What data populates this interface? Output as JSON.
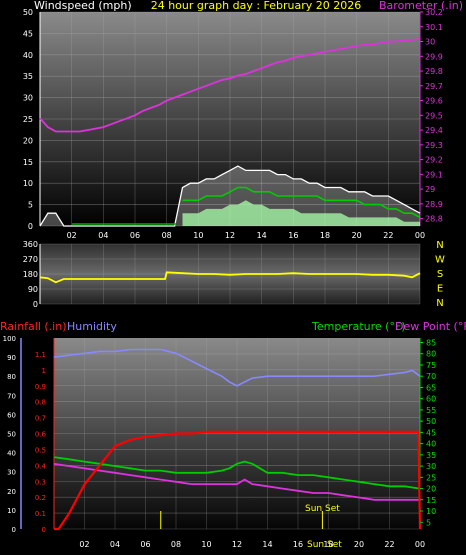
{
  "top": {
    "left_label": "Windspeed (mph)",
    "center_label": "24 hour graph day : February 20 2026",
    "right_label": "Barometer (.in)",
    "left_ticks": [
      "0",
      "5",
      "10",
      "15",
      "20",
      "25",
      "30",
      "35",
      "40",
      "45",
      "50"
    ],
    "right_ticks": [
      "28.8",
      "28.9",
      "29",
      "29.1",
      "29.2",
      "29.3",
      "29.4",
      "29.5",
      "29.6",
      "29.7",
      "29.8",
      "29.9",
      "30",
      "30.1",
      "30.2"
    ],
    "x_ticks": [
      "02",
      "04",
      "06",
      "08",
      "10",
      "12",
      "14",
      "16",
      "18",
      "20",
      "22",
      "00"
    ]
  },
  "wind_dir": {
    "left_ticks": [
      "0",
      "90",
      "180",
      "270",
      "360"
    ],
    "compass": [
      "N",
      "W",
      "S",
      "E",
      "N"
    ]
  },
  "bottom": {
    "rain_label": "Rainfall (.in)",
    "humidity_label": "Humidity",
    "temp_label": "Temperature (°F)",
    "dew_label": "Dew Point (°F)",
    "humidity_ticks": [
      "0",
      "10",
      "20",
      "30",
      "40",
      "50",
      "60",
      "70",
      "80",
      "90",
      "100"
    ],
    "rain_ticks": [
      "0",
      "0.1",
      "0.2",
      "0.3",
      "0.4",
      "0.5",
      "0.6",
      "0.7",
      "0.8",
      "0.9",
      "1",
      "1.1"
    ],
    "temp_ticks": [
      "5",
      "10",
      "15",
      "20",
      "25",
      "30",
      "35",
      "40",
      "45",
      "50",
      "55",
      "60",
      "65",
      "70",
      "75",
      "80",
      "85"
    ],
    "x_ticks": [
      "02",
      "04",
      "06",
      "08",
      "10",
      "12",
      "14",
      "16",
      "18",
      "20",
      "22",
      "00"
    ],
    "sunset_top": "Sun Set",
    "sunset_bottom": "Sun Set"
  },
  "chart_data": [
    {
      "type": "line",
      "title": "24 hour graph day : February 20 2026",
      "x_unit": "hour",
      "xlim": [
        0,
        24
      ],
      "ylabel": "Windspeed (mph)",
      "ylim": [
        0,
        50
      ],
      "y2label": "Barometer (.in)",
      "y2lim": [
        28.75,
        30.2
      ],
      "series": [
        {
          "name": "Barometer (.in)",
          "axis": "right",
          "x": [
            0,
            0.5,
            1,
            1.5,
            2,
            2.5,
            3,
            3.5,
            4,
            4.5,
            5,
            5.5,
            6,
            6.5,
            7,
            7.5,
            8,
            8.5,
            9,
            9.5,
            10,
            10.5,
            11,
            11.5,
            12,
            12.5,
            13,
            13.5,
            14,
            14.5,
            15,
            15.5,
            16,
            16.5,
            17,
            17.5,
            18,
            18.5,
            19,
            19.5,
            20,
            20.5,
            21,
            21.5,
            22,
            22.5,
            23,
            23.5,
            24
          ],
          "values": [
            29.48,
            29.42,
            29.39,
            29.39,
            29.39,
            29.39,
            29.4,
            29.41,
            29.42,
            29.44,
            29.46,
            29.48,
            29.5,
            29.53,
            29.55,
            29.57,
            29.6,
            29.62,
            29.64,
            29.66,
            29.68,
            29.7,
            29.72,
            29.74,
            29.75,
            29.77,
            29.78,
            29.8,
            29.82,
            29.84,
            29.86,
            29.87,
            29.89,
            29.9,
            29.91,
            29.92,
            29.93,
            29.94,
            29.95,
            29.96,
            29.97,
            29.98,
            29.98,
            29.99,
            30.0,
            30.0,
            30.01,
            30.01,
            30.02
          ],
          "color": "#dd33dd"
        },
        {
          "name": "Gust",
          "axis": "left",
          "x": [
            0,
            0.5,
            1,
            1.5,
            2,
            3,
            4,
            5,
            6,
            7,
            8,
            8.5,
            9,
            9.5,
            10,
            10.5,
            11,
            11.5,
            12,
            12.5,
            13,
            13.5,
            14,
            14.5,
            15,
            15.5,
            16,
            16.5,
            17,
            17.5,
            18,
            18.5,
            19,
            19.5,
            20,
            20.5,
            21,
            21.5,
            22,
            22.5,
            23,
            23.5,
            24
          ],
          "values": [
            0,
            3,
            3,
            0,
            0,
            0,
            0,
            0,
            0,
            0,
            0,
            0,
            9,
            10,
            10,
            11,
            11,
            12,
            13,
            14,
            13,
            13,
            13,
            13,
            12,
            12,
            11,
            11,
            10,
            10,
            9,
            9,
            9,
            8,
            8,
            8,
            7,
            7,
            7,
            6,
            5,
            4,
            3
          ],
          "color": "#ffffff"
        },
        {
          "name": "Average",
          "axis": "left",
          "x": [
            9,
            9.5,
            10,
            10.5,
            11,
            11.5,
            12,
            12.5,
            13,
            13.5,
            14,
            14.5,
            15,
            15.5,
            16,
            16.5,
            17,
            17.5,
            18,
            18.5,
            19,
            19.5,
            20,
            20.5,
            21,
            21.5,
            22,
            22.5,
            23,
            23.5,
            24
          ],
          "values": [
            6,
            6,
            6,
            7,
            7,
            7,
            8,
            9,
            9,
            8,
            8,
            8,
            7,
            7,
            7,
            7,
            7,
            7,
            6,
            6,
            6,
            6,
            6,
            5,
            5,
            5,
            4,
            4,
            3,
            3,
            2
          ],
          "color": "#00cc00"
        },
        {
          "name": "Speed",
          "axis": "left",
          "x": [
            9,
            9.5,
            10,
            10.5,
            11,
            11.5,
            12,
            12.5,
            13,
            13.5,
            14,
            14.5,
            15,
            15.5,
            16,
            16.5,
            17,
            17.5,
            18,
            18.5,
            19,
            19.5,
            20,
            20.5,
            21,
            21.5,
            22,
            22.5,
            23,
            23.5,
            24
          ],
          "values": [
            3,
            3,
            3,
            4,
            4,
            4,
            5,
            5,
            6,
            5,
            5,
            4,
            4,
            4,
            4,
            3,
            3,
            3,
            3,
            3,
            3,
            2,
            2,
            2,
            2,
            2,
            2,
            2,
            1,
            1,
            1
          ],
          "color": "#aaffaa"
        }
      ]
    },
    {
      "type": "line",
      "x_unit": "hour",
      "xlim": [
        0,
        24
      ],
      "ylim": [
        0,
        360
      ],
      "series": [
        {
          "name": "Wind direction",
          "x": [
            0,
            0.5,
            1,
            1.5,
            2,
            3,
            4,
            5,
            6,
            7,
            7.9,
            8,
            9,
            10,
            11,
            12,
            13,
            14,
            15,
            16,
            17,
            18,
            19,
            20,
            21,
            22,
            23,
            23.5,
            24
          ],
          "values": [
            160,
            155,
            130,
            150,
            150,
            150,
            150,
            150,
            150,
            150,
            150,
            190,
            185,
            180,
            180,
            175,
            180,
            180,
            180,
            185,
            180,
            180,
            180,
            180,
            175,
            175,
            170,
            160,
            185
          ],
          "color": "#ffff00"
        }
      ]
    },
    {
      "type": "line",
      "x_unit": "hour",
      "xlim": [
        0,
        24
      ],
      "y_axes": {
        "humidity": [
          0,
          100
        ],
        "rainfall": [
          0,
          1.2
        ],
        "temperature": [
          2,
          87
        ]
      },
      "series": [
        {
          "name": "Humidity",
          "axis": "humidity",
          "x": [
            0,
            1,
            2,
            3,
            4,
            5,
            6,
            7,
            8,
            9,
            10,
            11,
            11.5,
            12,
            12.5,
            13,
            14,
            15,
            16,
            17,
            18,
            19,
            20,
            21,
            22,
            23,
            23.5,
            24
          ],
          "values": [
            90,
            91,
            92,
            93,
            93,
            94,
            94,
            94,
            92,
            88,
            84,
            80,
            77,
            75,
            77,
            79,
            80,
            80,
            80,
            80,
            80,
            80,
            80,
            80,
            81,
            82,
            83,
            80
          ],
          "color": "#8888ff"
        },
        {
          "name": "Rainfall (.in)",
          "axis": "rainfall",
          "x": [
            0,
            0.3,
            1,
            2,
            3,
            4,
            5,
            6,
            7,
            8,
            9,
            10,
            11,
            12,
            13,
            14,
            15,
            16,
            17,
            18,
            19,
            20,
            21,
            22,
            23,
            23.9,
            24
          ],
          "values": [
            0,
            0,
            0.1,
            0.28,
            0.4,
            0.52,
            0.56,
            0.58,
            0.59,
            0.6,
            0.6,
            0.61,
            0.61,
            0.61,
            0.61,
            0.61,
            0.61,
            0.61,
            0.61,
            0.61,
            0.61,
            0.61,
            0.61,
            0.61,
            0.61,
            0.61,
            0
          ],
          "color": "#ff0000"
        },
        {
          "name": "Temperature (°F)",
          "axis": "temperature",
          "x": [
            0,
            1,
            2,
            3,
            4,
            5,
            6,
            7,
            8,
            9,
            10,
            11,
            11.5,
            12,
            12.5,
            13,
            14,
            15,
            16,
            17,
            18,
            19,
            20,
            21,
            22,
            23,
            24
          ],
          "values": [
            34,
            33,
            32,
            31,
            30,
            29,
            28,
            28,
            27,
            27,
            27,
            28,
            29,
            31,
            32,
            31,
            27,
            27,
            26,
            26,
            25,
            24,
            23,
            22,
            21,
            21,
            20
          ],
          "color": "#00cc00"
        },
        {
          "name": "Dew Point (°F)",
          "axis": "temperature",
          "x": [
            0,
            1,
            2,
            3,
            4,
            5,
            6,
            7,
            8,
            9,
            10,
            11,
            12,
            12.5,
            13,
            14,
            15,
            16,
            17,
            18,
            19,
            20,
            21,
            22,
            23,
            24
          ],
          "values": [
            31,
            30,
            29,
            28,
            27,
            26,
            25,
            24,
            23,
            22,
            22,
            22,
            22,
            24,
            22,
            21,
            20,
            19,
            18,
            18,
            17,
            16,
            15,
            15,
            15,
            15
          ],
          "color": "#dd33dd"
        }
      ],
      "events": [
        {
          "label": "Sun Set",
          "x": 17.6
        }
      ]
    }
  ]
}
